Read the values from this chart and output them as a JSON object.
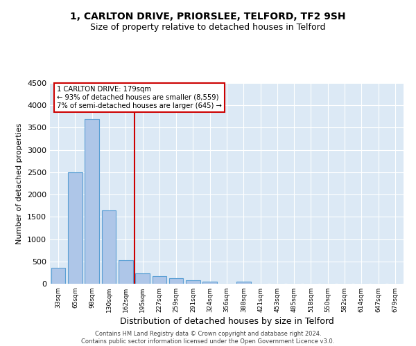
{
  "title": "1, CARLTON DRIVE, PRIORSLEE, TELFORD, TF2 9SH",
  "subtitle": "Size of property relative to detached houses in Telford",
  "xlabel": "Distribution of detached houses by size in Telford",
  "ylabel": "Number of detached properties",
  "categories": [
    "33sqm",
    "65sqm",
    "98sqm",
    "130sqm",
    "162sqm",
    "195sqm",
    "227sqm",
    "259sqm",
    "291sqm",
    "324sqm",
    "356sqm",
    "388sqm",
    "421sqm",
    "453sqm",
    "485sqm",
    "518sqm",
    "550sqm",
    "582sqm",
    "614sqm",
    "647sqm",
    "679sqm"
  ],
  "values": [
    350,
    2500,
    3700,
    1650,
    520,
    240,
    175,
    130,
    80,
    50,
    0,
    50,
    0,
    0,
    0,
    0,
    0,
    0,
    0,
    0,
    0
  ],
  "bar_color": "#aec6e8",
  "bar_edge_color": "#5a9fd4",
  "vline_color": "#cc0000",
  "annotation_text": "1 CARLTON DRIVE: 179sqm\n← 93% of detached houses are smaller (8,559)\n7% of semi-detached houses are larger (645) →",
  "annotation_box_color": "white",
  "annotation_box_edge": "#cc0000",
  "ylim": [
    0,
    4500
  ],
  "yticks": [
    0,
    500,
    1000,
    1500,
    2000,
    2500,
    3000,
    3500,
    4000,
    4500
  ],
  "background_color": "#dce9f5",
  "footer_line1": "Contains HM Land Registry data © Crown copyright and database right 2024.",
  "footer_line2": "Contains public sector information licensed under the Open Government Licence v3.0.",
  "title_fontsize": 10,
  "subtitle_fontsize": 9,
  "ylabel_fontsize": 8,
  "xlabel_fontsize": 9
}
